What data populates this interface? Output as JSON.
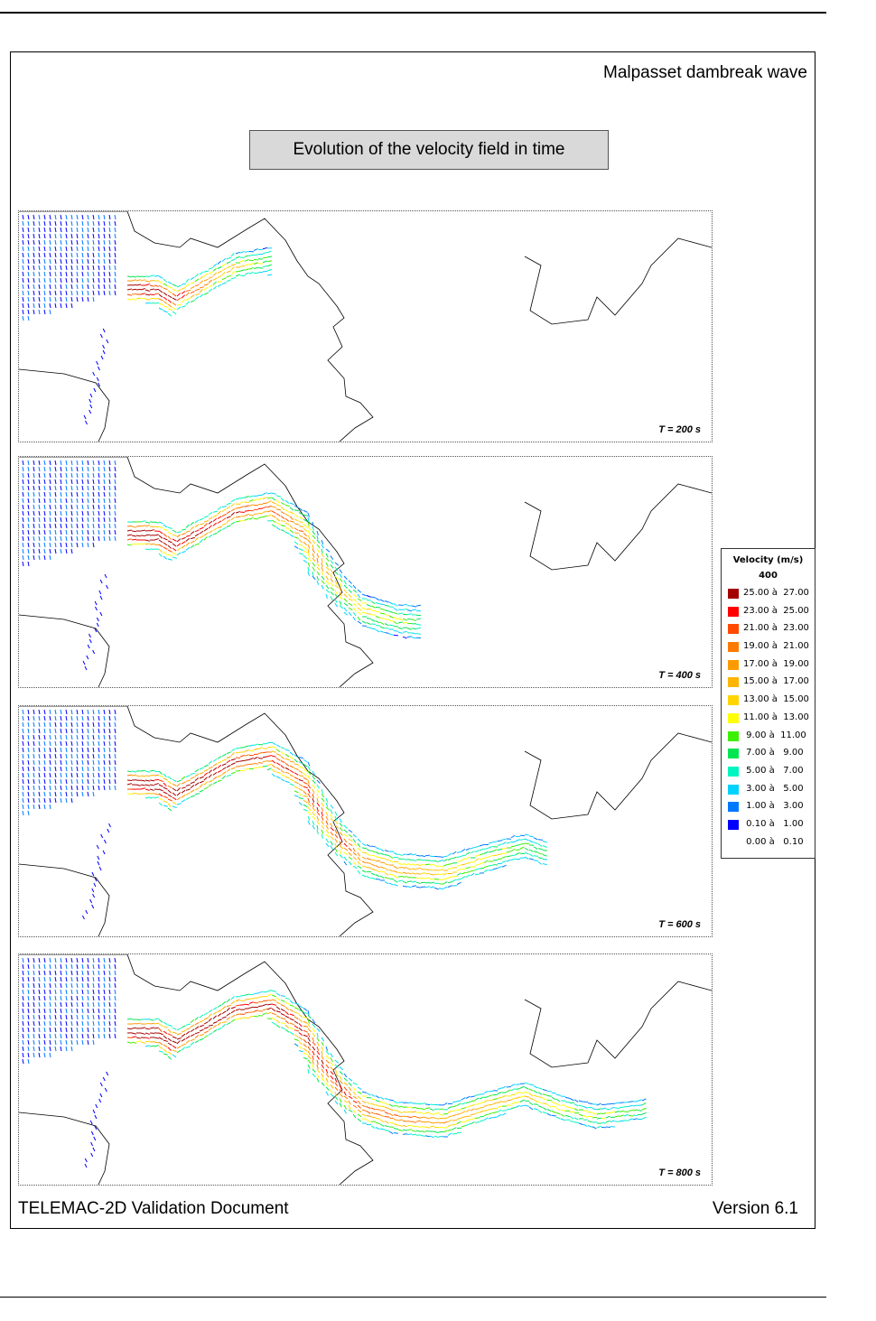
{
  "header": {
    "title": "Malpasset dambreak wave",
    "subtitle": "Evolution of the velocity field in time"
  },
  "panels": [
    {
      "label": "T = 200 s",
      "extent": 0.36
    },
    {
      "label": "T = 400 s",
      "extent": 0.58
    },
    {
      "label": "T = 600 s",
      "extent": 0.76
    },
    {
      "label": "T = 800 s",
      "extent": 0.9
    }
  ],
  "legend": {
    "title": "Velocity (m/s)",
    "subtitle": "400",
    "rows": [
      {
        "label": "25.00 à  27.00",
        "color": "#a50000"
      },
      {
        "label": "23.00 à  25.00",
        "color": "#ff0000"
      },
      {
        "label": "21.00 à  23.00",
        "color": "#ff4a00"
      },
      {
        "label": "19.00 à  21.00",
        "color": "#ff7a00"
      },
      {
        "label": "17.00 à  19.00",
        "color": "#ff9a00"
      },
      {
        "label": "15.00 à  17.00",
        "color": "#ffb400"
      },
      {
        "label": "13.00 à  15.00",
        "color": "#ffd400"
      },
      {
        "label": "11.00 à  13.00",
        "color": "#ffff00"
      },
      {
        "label": " 9.00 à  11.00",
        "color": "#3cf000"
      },
      {
        "label": " 7.00 à   9.00",
        "color": "#00e650"
      },
      {
        "label": " 5.00 à   7.00",
        "color": "#00f5c0"
      },
      {
        "label": " 3.00 à   5.00",
        "color": "#00d2ff"
      },
      {
        "label": " 1.00 à   3.00",
        "color": "#0078ff"
      },
      {
        "label": " 0.10 à   1.00",
        "color": "#0000ff"
      },
      {
        "label": " 0.00 à   0.10",
        "color": "#ffffff"
      }
    ]
  },
  "footer": {
    "left": "TELEMAC-2D Validation Document",
    "right": "Version 6.1"
  }
}
